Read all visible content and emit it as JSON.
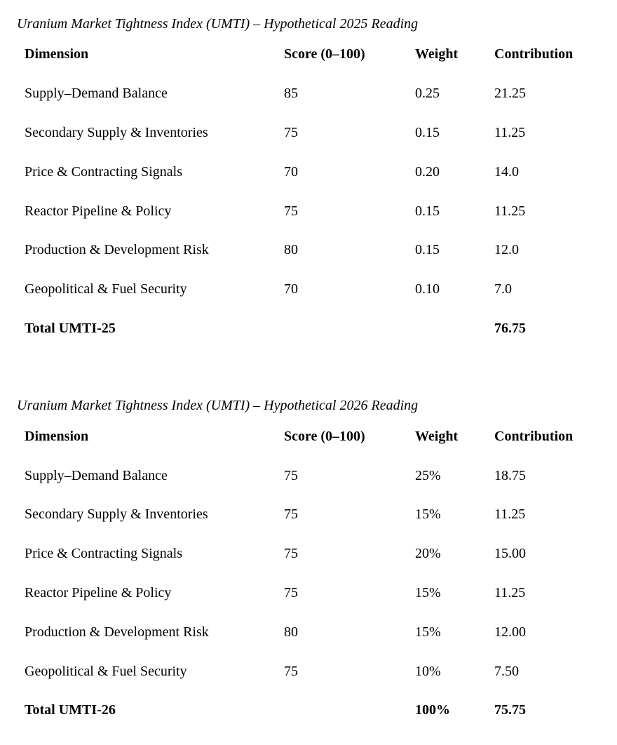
{
  "page": {
    "background_color": "#ffffff",
    "text_color": "#000000"
  },
  "tables": [
    {
      "title": "Uranium Market Tightness Index (UMTI) – Hypothetical 2025 Reading",
      "columns": [
        "Dimension",
        "Score (0–100)",
        "Weight",
        "Contribution"
      ],
      "rows": [
        {
          "dimension": "Supply–Demand Balance",
          "score": "85",
          "weight": "0.25",
          "contribution": "21.25"
        },
        {
          "dimension": "Secondary Supply & Inventories",
          "score": "75",
          "weight": "0.15",
          "contribution": "11.25"
        },
        {
          "dimension": "Price & Contracting Signals",
          "score": "70",
          "weight": "0.20",
          "contribution": "14.0"
        },
        {
          "dimension": "Reactor Pipeline & Policy",
          "score": "75",
          "weight": "0.15",
          "contribution": "11.25"
        },
        {
          "dimension": "Production & Development Risk",
          "score": "80",
          "weight": "0.15",
          "contribution": "12.0"
        },
        {
          "dimension": "Geopolitical & Fuel Security",
          "score": "70",
          "weight": "0.10",
          "contribution": "7.0"
        }
      ],
      "total": {
        "label": "Total UMTI-25",
        "score": "",
        "weight": "",
        "contribution": "76.75"
      }
    },
    {
      "title": "Uranium Market Tightness Index (UMTI) – Hypothetical 2026 Reading",
      "columns": [
        "Dimension",
        "Score (0–100)",
        "Weight",
        "Contribution"
      ],
      "rows": [
        {
          "dimension": "Supply–Demand Balance",
          "score": "75",
          "weight": "25%",
          "contribution": "18.75"
        },
        {
          "dimension": "Secondary Supply & Inventories",
          "score": "75",
          "weight": "15%",
          "contribution": "11.25"
        },
        {
          "dimension": "Price & Contracting Signals",
          "score": "75",
          "weight": "20%",
          "contribution": "15.00"
        },
        {
          "dimension": "Reactor Pipeline & Policy",
          "score": "75",
          "weight": "15%",
          "contribution": "11.25"
        },
        {
          "dimension": "Production & Development Risk",
          "score": "80",
          "weight": "15%",
          "contribution": "12.00"
        },
        {
          "dimension": "Geopolitical & Fuel Security",
          "score": "75",
          "weight": "10%",
          "contribution": "7.50"
        }
      ],
      "total": {
        "label": "Total UMTI-26",
        "score": "",
        "weight": "100%",
        "contribution": "75.75"
      }
    }
  ]
}
